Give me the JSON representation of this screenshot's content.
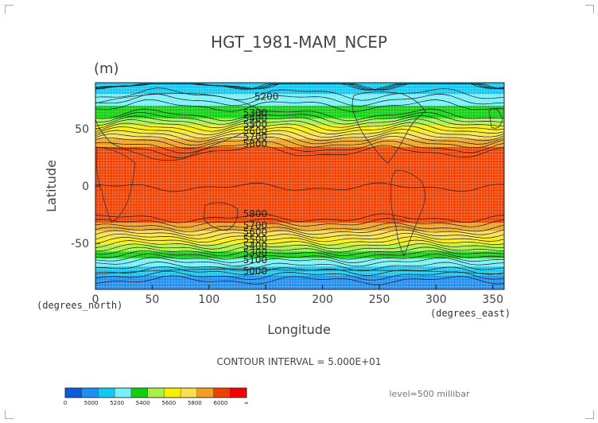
{
  "chart_data": {
    "type": "heatmap",
    "title": "HGT_1981-MAM_NCEP",
    "units": "(m)",
    "xlabel": "Longitude",
    "ylabel": "Latitude",
    "x_unit_label": "(degrees_east)",
    "y_unit_label": "(degrees_north)",
    "xlim": [
      0,
      360
    ],
    "ylim": [
      -90,
      90
    ],
    "x_ticks": [
      0,
      50,
      100,
      150,
      200,
      250,
      300,
      350
    ],
    "y_ticks": [
      -50,
      0,
      50
    ],
    "grid": true,
    "contour_interval_text": "CONTOUR INTERVAL = 5.000E+01",
    "level_text": "level=500 millibar",
    "fill_levels": [
      5000,
      5100,
      5200,
      5300,
      5400,
      5500,
      5600,
      5700,
      5800,
      5900,
      6000
    ],
    "colorbar": {
      "labels": [
        "0",
        "5000",
        "5200",
        "5400",
        "5600",
        "5800",
        "6000",
        "∞"
      ],
      "colors": [
        "#0a5cdc",
        "#1e8ef0",
        "#12c8f0",
        "#78f0f8",
        "#10d010",
        "#a8f048",
        "#f8f000",
        "#f8e050",
        "#f0a020",
        "#f04000",
        "#f80000"
      ]
    },
    "contour_labels": [
      {
        "label": "5200",
        "lon": 140,
        "lat": 75
      },
      {
        "label": "5300",
        "lon": 130,
        "lat": 61
      },
      {
        "label": "5400",
        "lon": 130,
        "lat": 56
      },
      {
        "label": "5500",
        "lon": 130,
        "lat": 51
      },
      {
        "label": "5600",
        "lon": 130,
        "lat": 45
      },
      {
        "label": "5700",
        "lon": 130,
        "lat": 40
      },
      {
        "label": "5800",
        "lon": 130,
        "lat": 34
      },
      {
        "label": "5800",
        "lon": 130,
        "lat": -27
      },
      {
        "label": "5700",
        "lon": 130,
        "lat": -37
      },
      {
        "label": "5600",
        "lon": 130,
        "lat": -43
      },
      {
        "label": "5500",
        "lon": 130,
        "lat": -49
      },
      {
        "label": "5400",
        "lon": 130,
        "lat": -55
      },
      {
        "label": "5300",
        "lon": 130,
        "lat": -61
      },
      {
        "label": "5100",
        "lon": 130,
        "lat": -67
      },
      {
        "label": "5000",
        "lon": 130,
        "lat": -77
      }
    ],
    "zonal_profile": {
      "lat": [
        90,
        80,
        70,
        62,
        56,
        50,
        44,
        38,
        30,
        20,
        0,
        -20,
        -28,
        -36,
        -42,
        -48,
        -54,
        -60,
        -66,
        -74,
        -82,
        -90
      ],
      "value": [
        5150,
        5200,
        5300,
        5350,
        5450,
        5550,
        5650,
        5750,
        5850,
        5880,
        5880,
        5880,
        5850,
        5750,
        5650,
        5550,
        5450,
        5350,
        5250,
        5150,
        5050,
        5000
      ]
    }
  }
}
